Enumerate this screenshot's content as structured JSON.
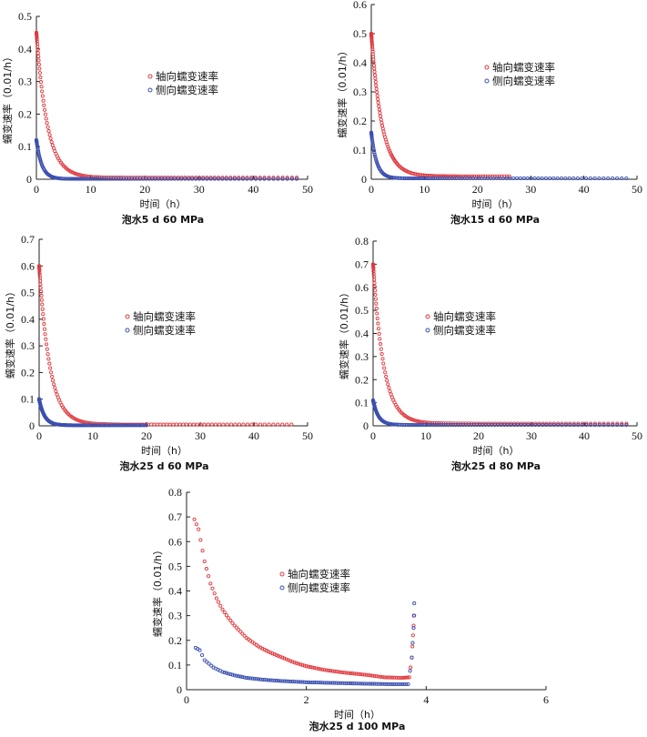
{
  "chart_data": [
    {
      "type": "scatter",
      "caption": "泡水5 d 60 MPa",
      "xlabel": "时间（h）",
      "ylabel": "蠕变速率（0.01/h）",
      "xlim": [
        0,
        50
      ],
      "ylim": [
        0,
        0.5
      ],
      "xticks": [
        "0",
        "10",
        "20",
        "30",
        "40",
        "50"
      ],
      "yticks": [
        "0",
        "0.1",
        "0.2",
        "0.3",
        "0.4",
        "0.5"
      ],
      "legend_position": "right",
      "series": [
        {
          "name": "轴向蠕变速率",
          "color": "#e0393e",
          "x_end": 48,
          "initial": 0.45,
          "plateau": 0.005,
          "tau": 2.0
        },
        {
          "name": "侧向蠕变速率",
          "color": "#3a4fb0",
          "x_end": 48,
          "initial": 0.12,
          "plateau": 0.001,
          "tau": 1.0
        }
      ]
    },
    {
      "type": "scatter",
      "caption": "泡水15 d 60 MPa",
      "xlabel": "时间（h）",
      "ylabel": "蠕变速率（0.01/h）",
      "xlim": [
        0,
        50
      ],
      "ylim": [
        0,
        0.6
      ],
      "xticks": [
        "0",
        "10",
        "20",
        "30",
        "40",
        "50"
      ],
      "yticks": [
        "0",
        "0.1",
        "0.2",
        "0.3",
        "0.4",
        "0.5",
        "0.6"
      ],
      "legend_position": "right",
      "series": [
        {
          "name": "轴向蠕变速率",
          "color": "#e0393e",
          "x_end": 26,
          "initial": 0.5,
          "plateau": 0.01,
          "tau": 2.0
        },
        {
          "name": "侧向蠕变速率",
          "color": "#3a4fb0",
          "x_end": 48,
          "initial": 0.16,
          "plateau": 0.003,
          "tau": 1.0
        }
      ]
    },
    {
      "type": "scatter",
      "caption": "泡水25 d 60 MPa",
      "xlabel": "时间（h）",
      "ylabel": "蠕变速率（0.01/h）",
      "xlim": [
        0,
        50
      ],
      "ylim": [
        0,
        0.7
      ],
      "xticks": [
        "0",
        "10",
        "20",
        "30",
        "40",
        "50"
      ],
      "yticks": [
        "0",
        "0.1",
        "0.2",
        "0.3",
        "0.4",
        "0.5",
        "0.6",
        "0.7"
      ],
      "legend_position": "right",
      "series": [
        {
          "name": "轴向蠕变速率",
          "color": "#e0393e",
          "x_end": 47,
          "initial": 0.6,
          "plateau": 0.005,
          "tau": 2.0
        },
        {
          "name": "侧向蠕变速率",
          "color": "#3a4fb0",
          "x_end": 20,
          "initial": 0.1,
          "plateau": 0.002,
          "tau": 1.0
        }
      ]
    },
    {
      "type": "scatter",
      "caption": "泡水25 d 80 MPa",
      "xlabel": "时间（h）",
      "ylabel": "蠕变速率（0.01/h）",
      "xlim": [
        0,
        50
      ],
      "ylim": [
        0,
        0.8
      ],
      "xticks": [
        "0",
        "10",
        "20",
        "30",
        "40",
        "50"
      ],
      "yticks": [
        "0",
        "0.1",
        "0.2",
        "0.3",
        "0.4",
        "0.5",
        "0.6",
        "0.7",
        "0.8"
      ],
      "legend_position": "right",
      "series": [
        {
          "name": "轴向蠕变速率",
          "color": "#e0393e",
          "x_end": 48,
          "initial": 0.7,
          "plateau": 0.01,
          "tau": 2.0
        },
        {
          "name": "侧向蠕变速率",
          "color": "#3a4fb0",
          "x_end": 48,
          "initial": 0.11,
          "plateau": 0.004,
          "tau": 1.0
        }
      ]
    },
    {
      "type": "scatter",
      "caption": "泡水25 d 100 MPa",
      "xlabel": "时间（h）",
      "ylabel": "蠕变速率（0.01/h）",
      "xlim": [
        0,
        6
      ],
      "ylim": [
        0,
        0.8
      ],
      "xticks": [
        "0",
        "2",
        "4",
        "6"
      ],
      "yticks": [
        "0",
        "0.1",
        "0.2",
        "0.3",
        "0.4",
        "0.5",
        "0.6",
        "0.7",
        "0.8"
      ],
      "legend_position": "right",
      "series": [
        {
          "name": "轴向蠕变速率",
          "color": "#e0393e",
          "points": [
            [
              0.13,
              0.69
            ],
            [
              0.2,
              0.65
            ],
            [
              0.3,
              0.52
            ],
            [
              0.4,
              0.43
            ],
            [
              0.5,
              0.37
            ],
            [
              0.6,
              0.325
            ],
            [
              0.7,
              0.29
            ],
            [
              0.8,
              0.26
            ],
            [
              1.0,
              0.21
            ],
            [
              1.2,
              0.175
            ],
            [
              1.4,
              0.15
            ],
            [
              1.6,
              0.13
            ],
            [
              1.8,
              0.11
            ],
            [
              2.0,
              0.095
            ],
            [
              2.3,
              0.08
            ],
            [
              2.6,
              0.07
            ],
            [
              3.0,
              0.06
            ],
            [
              3.3,
              0.05
            ],
            [
              3.6,
              0.048
            ],
            [
              3.72,
              0.05
            ],
            [
              3.76,
              0.13
            ],
            [
              3.78,
              0.22
            ],
            [
              3.8,
              0.3
            ]
          ]
        },
        {
          "name": "侧向蠕变速率",
          "color": "#3a4fb0",
          "points": [
            [
              0.15,
              0.17
            ],
            [
              0.22,
              0.16
            ],
            [
              0.3,
              0.12
            ],
            [
              0.45,
              0.09
            ],
            [
              0.6,
              0.072
            ],
            [
              0.8,
              0.058
            ],
            [
              1.0,
              0.048
            ],
            [
              1.3,
              0.04
            ],
            [
              1.6,
              0.035
            ],
            [
              2.0,
              0.03
            ],
            [
              2.5,
              0.027
            ],
            [
              3.0,
              0.024
            ],
            [
              3.5,
              0.022
            ],
            [
              3.7,
              0.022
            ],
            [
              3.76,
              0.13
            ],
            [
              3.79,
              0.25
            ],
            [
              3.8,
              0.35
            ]
          ]
        }
      ]
    }
  ]
}
